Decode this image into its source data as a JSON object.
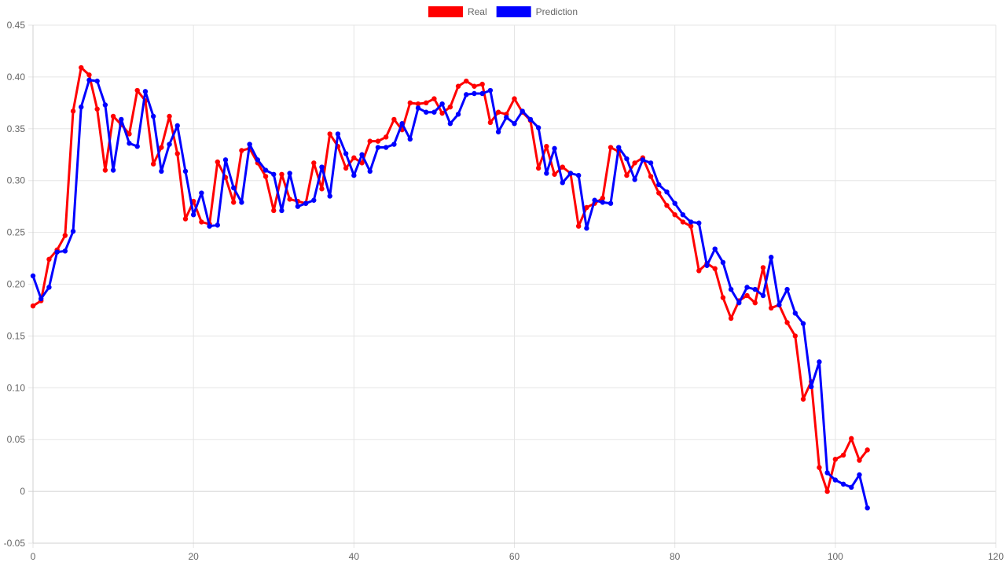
{
  "chart_data": {
    "type": "line",
    "title": "",
    "xlabel": "",
    "ylabel": "",
    "xlim": [
      0,
      120
    ],
    "ylim": [
      -0.05,
      0.45
    ],
    "x_ticks": [
      0,
      20,
      40,
      60,
      80,
      100,
      120
    ],
    "y_ticks": [
      -0.05,
      0,
      0.05,
      0.1,
      0.15,
      0.2,
      0.25,
      0.3,
      0.35,
      0.4,
      0.45
    ],
    "y_tick_labels": [
      "-0.05",
      "0",
      "0.05",
      "0.10",
      "0.15",
      "0.20",
      "0.25",
      "0.30",
      "0.35",
      "0.40",
      "0.45"
    ],
    "x_tick_labels": [
      "0",
      "20",
      "40",
      "60",
      "80",
      "100",
      "120"
    ],
    "grid": true,
    "legend_position": "top-center",
    "series": [
      {
        "name": "Real",
        "color": "#ff0000",
        "x": [
          0,
          1,
          2,
          3,
          4,
          5,
          6,
          7,
          8,
          9,
          10,
          11,
          12,
          13,
          14,
          15,
          16,
          17,
          18,
          19,
          20,
          21,
          22,
          23,
          24,
          25,
          26,
          27,
          28,
          29,
          30,
          31,
          32,
          33,
          34,
          35,
          36,
          37,
          38,
          39,
          40,
          41,
          42,
          43,
          44,
          45,
          46,
          47,
          48,
          49,
          50,
          51,
          52,
          53,
          54,
          55,
          56,
          57,
          58,
          59,
          60,
          61,
          62,
          63,
          64,
          65,
          66,
          67,
          68,
          69,
          70,
          71,
          72,
          73,
          74,
          75,
          76,
          77,
          78,
          79,
          80,
          81,
          82,
          83,
          84,
          85,
          86,
          87,
          88,
          89,
          90,
          91,
          92,
          93,
          94,
          95,
          96,
          97,
          98,
          99,
          100,
          101,
          102,
          103,
          104
        ],
        "values": [
          0.179,
          0.184,
          0.224,
          0.233,
          0.247,
          0.367,
          0.409,
          0.402,
          0.369,
          0.31,
          0.362,
          0.354,
          0.345,
          0.387,
          0.377,
          0.316,
          0.332,
          0.362,
          0.326,
          0.263,
          0.28,
          0.26,
          0.258,
          0.318,
          0.303,
          0.279,
          0.329,
          0.331,
          0.317,
          0.304,
          0.271,
          0.306,
          0.282,
          0.28,
          0.278,
          0.317,
          0.292,
          0.345,
          0.333,
          0.312,
          0.322,
          0.317,
          0.338,
          0.338,
          0.342,
          0.359,
          0.349,
          0.375,
          0.374,
          0.375,
          0.379,
          0.365,
          0.371,
          0.391,
          0.396,
          0.391,
          0.393,
          0.356,
          0.366,
          0.364,
          0.379,
          0.366,
          0.358,
          0.312,
          0.333,
          0.306,
          0.313,
          0.307,
          0.256,
          0.274,
          0.278,
          0.283,
          0.332,
          0.328,
          0.305,
          0.317,
          0.322,
          0.304,
          0.288,
          0.276,
          0.267,
          0.26,
          0.256,
          0.213,
          0.22,
          0.215,
          0.187,
          0.167,
          0.184,
          0.189,
          0.182,
          0.216,
          0.177,
          0.18,
          0.163,
          0.15,
          0.089,
          0.106,
          0.023,
          0.0,
          0.031,
          0.035,
          0.051,
          0.03,
          0.04
        ]
      },
      {
        "name": "Prediction",
        "color": "#0000ff",
        "x": [
          0,
          1,
          2,
          3,
          4,
          5,
          6,
          7,
          8,
          9,
          10,
          11,
          12,
          13,
          14,
          15,
          16,
          17,
          18,
          19,
          20,
          21,
          22,
          23,
          24,
          25,
          26,
          27,
          28,
          29,
          30,
          31,
          32,
          33,
          34,
          35,
          36,
          37,
          38,
          39,
          40,
          41,
          42,
          43,
          44,
          45,
          46,
          47,
          48,
          49,
          50,
          51,
          52,
          53,
          54,
          55,
          56,
          57,
          58,
          59,
          60,
          61,
          62,
          63,
          64,
          65,
          66,
          67,
          68,
          69,
          70,
          71,
          72,
          73,
          74,
          75,
          76,
          77,
          78,
          79,
          80,
          81,
          82,
          83,
          84,
          85,
          86,
          87,
          88,
          89,
          90,
          91,
          92,
          93,
          94,
          95,
          96,
          97,
          98,
          99,
          100,
          101,
          102,
          103,
          104
        ],
        "values": [
          0.208,
          0.186,
          0.197,
          0.231,
          0.232,
          0.251,
          0.371,
          0.397,
          0.396,
          0.373,
          0.31,
          0.359,
          0.336,
          0.333,
          0.386,
          0.362,
          0.309,
          0.335,
          0.353,
          0.309,
          0.267,
          0.288,
          0.256,
          0.257,
          0.32,
          0.293,
          0.279,
          0.335,
          0.32,
          0.31,
          0.306,
          0.271,
          0.307,
          0.275,
          0.278,
          0.281,
          0.313,
          0.285,
          0.345,
          0.326,
          0.305,
          0.325,
          0.309,
          0.332,
          0.332,
          0.335,
          0.355,
          0.34,
          0.37,
          0.366,
          0.366,
          0.374,
          0.355,
          0.364,
          0.383,
          0.384,
          0.384,
          0.387,
          0.347,
          0.361,
          0.355,
          0.367,
          0.359,
          0.351,
          0.307,
          0.331,
          0.298,
          0.307,
          0.305,
          0.254,
          0.281,
          0.279,
          0.278,
          0.332,
          0.321,
          0.301,
          0.32,
          0.317,
          0.296,
          0.289,
          0.278,
          0.267,
          0.26,
          0.259,
          0.218,
          0.234,
          0.221,
          0.195,
          0.182,
          0.197,
          0.195,
          0.189,
          0.226,
          0.18,
          0.195,
          0.172,
          0.162,
          0.101,
          0.125,
          0.018,
          0.011,
          0.007,
          0.004,
          0.016,
          -0.016
        ]
      }
    ]
  }
}
